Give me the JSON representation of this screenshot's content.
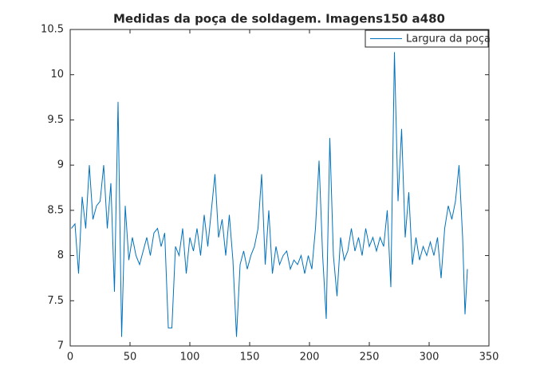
{
  "chart_data": {
    "type": "line",
    "title": "Medidas da poça de soldagem. Imagens150 a480",
    "x": [
      1,
      4,
      7,
      10,
      13,
      16,
      19,
      22,
      25,
      28,
      31,
      34,
      37,
      40,
      43,
      46,
      49,
      52,
      55,
      58,
      61,
      64,
      67,
      70,
      73,
      76,
      79,
      82,
      85,
      88,
      91,
      94,
      97,
      100,
      103,
      106,
      109,
      112,
      115,
      118,
      121,
      124,
      127,
      130,
      133,
      136,
      139,
      142,
      145,
      148,
      151,
      154,
      157,
      160,
      163,
      166,
      169,
      172,
      175,
      178,
      181,
      184,
      187,
      190,
      193,
      196,
      199,
      202,
      205,
      208,
      211,
      214,
      217,
      220,
      223,
      226,
      229,
      232,
      235,
      238,
      241,
      244,
      247,
      250,
      253,
      256,
      259,
      262,
      265,
      268,
      271,
      274,
      277,
      280,
      283,
      286,
      289,
      292,
      295,
      298,
      301,
      304,
      307,
      310,
      313,
      316,
      319,
      322,
      325,
      328,
      330,
      332
    ],
    "series": [
      {
        "name": "Largura da poça",
        "color": "#0072bd",
        "values": [
          8.3,
          8.35,
          7.8,
          8.65,
          8.3,
          9.0,
          8.4,
          8.55,
          8.6,
          9.0,
          8.3,
          8.8,
          7.6,
          9.7,
          7.1,
          8.55,
          7.95,
          8.2,
          8.0,
          7.9,
          8.05,
          8.2,
          8.0,
          8.25,
          8.3,
          8.1,
          8.25,
          7.2,
          7.2,
          8.1,
          8.0,
          8.3,
          7.8,
          8.2,
          8.05,
          8.3,
          8.0,
          8.45,
          8.1,
          8.5,
          8.9,
          8.2,
          8.4,
          8.0,
          8.45,
          7.95,
          7.1,
          7.9,
          8.05,
          7.85,
          8.0,
          8.1,
          8.3,
          8.9,
          7.9,
          8.5,
          7.8,
          8.1,
          7.9,
          8.0,
          8.05,
          7.85,
          7.95,
          7.9,
          8.0,
          7.8,
          8.0,
          7.85,
          8.3,
          9.05,
          8.0,
          7.3,
          9.3,
          8.0,
          7.55,
          8.2,
          7.95,
          8.05,
          8.3,
          8.05,
          8.2,
          8.0,
          8.3,
          8.1,
          8.2,
          8.05,
          8.2,
          8.1,
          8.5,
          7.65,
          10.25,
          8.6,
          9.4,
          8.2,
          8.7,
          7.9,
          8.2,
          7.95,
          8.1,
          8.0,
          8.15,
          8.0,
          8.2,
          7.75,
          8.3,
          8.55,
          8.4,
          8.6,
          9.0,
          8.2,
          7.35,
          7.85
        ]
      }
    ],
    "xlim": [
      0,
      350
    ],
    "xticks": [
      0,
      50,
      100,
      150,
      200,
      250,
      300,
      350
    ],
    "ylim": [
      7,
      10.5
    ],
    "yticks": [
      7,
      7.5,
      8,
      8.5,
      9,
      9.5,
      10,
      10.5
    ],
    "legend": "upper right"
  }
}
